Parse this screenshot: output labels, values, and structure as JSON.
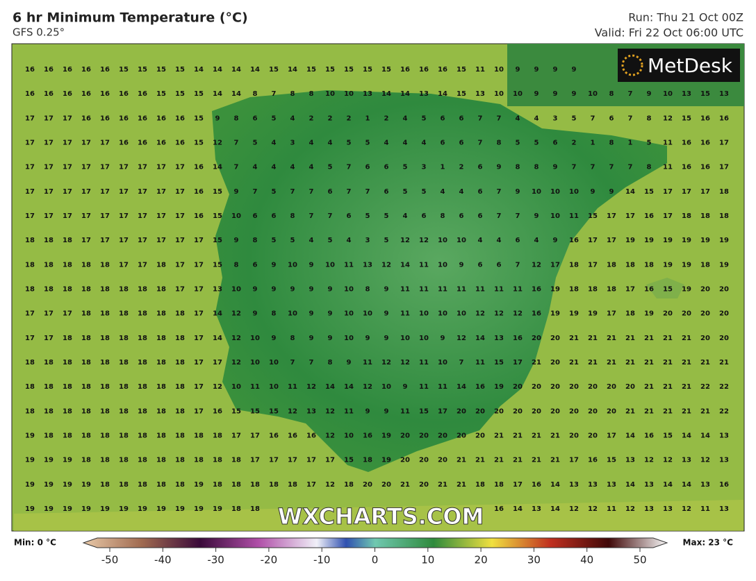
{
  "header": {
    "title": "6 hr Minimum Temperature (°C)",
    "model": "GFS 0.25°",
    "run": "Run: Thu 21 Oct 00Z",
    "valid": "Valid: Fri 22 Oct 06:00 UTC"
  },
  "logo": "MetDesk",
  "watermark": "WXCHARTS.COM",
  "grid": [
    [
      16,
      16,
      16,
      16,
      16,
      15,
      15,
      15,
      15,
      14,
      14,
      14,
      14,
      15,
      14,
      15,
      15,
      15,
      15,
      15,
      16,
      16,
      16,
      15,
      11,
      10,
      9,
      9,
      9,
      9,
      null,
      null,
      null,
      null,
      null,
      null,
      null,
      null
    ],
    [
      16,
      16,
      16,
      16,
      16,
      16,
      16,
      15,
      15,
      15,
      14,
      14,
      8,
      7,
      8,
      8,
      10,
      10,
      13,
      14,
      14,
      13,
      14,
      15,
      13,
      10,
      10,
      9,
      9,
      9,
      10,
      8,
      7,
      9,
      10,
      13,
      15,
      13
    ],
    [
      17,
      17,
      17,
      16,
      16,
      16,
      16,
      16,
      16,
      15,
      9,
      8,
      6,
      5,
      4,
      2,
      2,
      2,
      1,
      2,
      4,
      5,
      6,
      6,
      7,
      7,
      4,
      4,
      3,
      5,
      7,
      6,
      7,
      8,
      12,
      15,
      16,
      16
    ],
    [
      17,
      17,
      17,
      17,
      17,
      16,
      16,
      16,
      16,
      15,
      12,
      7,
      5,
      4,
      3,
      4,
      4,
      5,
      5,
      4,
      4,
      4,
      6,
      6,
      7,
      8,
      5,
      5,
      6,
      2,
      1,
      8,
      1,
      5,
      11,
      16,
      16,
      17
    ],
    [
      17,
      17,
      17,
      17,
      17,
      17,
      17,
      17,
      17,
      16,
      14,
      7,
      4,
      4,
      4,
      4,
      5,
      7,
      6,
      6,
      5,
      3,
      1,
      2,
      6,
      9,
      8,
      8,
      9,
      7,
      7,
      7,
      7,
      8,
      11,
      16,
      16,
      17
    ],
    [
      17,
      17,
      17,
      17,
      17,
      17,
      17,
      17,
      17,
      16,
      15,
      9,
      7,
      5,
      7,
      7,
      6,
      7,
      7,
      6,
      5,
      5,
      4,
      4,
      6,
      7,
      9,
      10,
      10,
      10,
      9,
      9,
      14,
      15,
      17,
      17,
      17,
      18
    ],
    [
      17,
      17,
      17,
      17,
      17,
      17,
      17,
      17,
      17,
      16,
      15,
      10,
      6,
      6,
      8,
      7,
      7,
      6,
      5,
      5,
      4,
      6,
      8,
      6,
      6,
      7,
      7,
      9,
      10,
      11,
      15,
      17,
      17,
      16,
      17,
      18,
      18,
      18
    ],
    [
      18,
      18,
      18,
      17,
      17,
      17,
      17,
      17,
      17,
      17,
      15,
      9,
      8,
      5,
      5,
      4,
      5,
      4,
      3,
      5,
      12,
      12,
      10,
      10,
      4,
      4,
      6,
      4,
      9,
      16,
      17,
      17,
      19,
      19,
      19,
      19,
      19,
      19
    ],
    [
      18,
      18,
      18,
      18,
      18,
      17,
      17,
      18,
      17,
      17,
      15,
      8,
      6,
      9,
      10,
      9,
      10,
      11,
      13,
      12,
      14,
      11,
      10,
      9,
      6,
      6,
      7,
      12,
      17,
      18,
      17,
      18,
      18,
      18,
      19,
      19,
      18,
      19
    ],
    [
      18,
      18,
      18,
      18,
      18,
      18,
      18,
      18,
      17,
      17,
      13,
      10,
      9,
      9,
      9,
      9,
      9,
      10,
      8,
      9,
      11,
      11,
      11,
      11,
      11,
      11,
      11,
      16,
      19,
      18,
      18,
      18,
      17,
      16,
      15,
      19,
      20,
      20
    ],
    [
      17,
      17,
      17,
      18,
      18,
      18,
      18,
      18,
      18,
      17,
      14,
      12,
      9,
      8,
      10,
      9,
      9,
      10,
      10,
      9,
      11,
      10,
      10,
      10,
      12,
      12,
      12,
      16,
      19,
      19,
      19,
      17,
      18,
      19,
      20,
      20,
      20,
      20
    ],
    [
      17,
      17,
      18,
      18,
      18,
      18,
      18,
      18,
      18,
      17,
      14,
      12,
      10,
      9,
      8,
      9,
      9,
      10,
      9,
      9,
      10,
      10,
      9,
      12,
      14,
      13,
      16,
      20,
      20,
      21,
      21,
      21,
      21,
      21,
      21,
      21,
      20,
      20
    ],
    [
      18,
      18,
      18,
      18,
      18,
      18,
      18,
      18,
      18,
      17,
      17,
      12,
      10,
      10,
      7,
      7,
      8,
      9,
      11,
      12,
      12,
      11,
      10,
      7,
      11,
      15,
      17,
      21,
      20,
      21,
      21,
      21,
      21,
      21,
      21,
      21,
      21,
      21
    ],
    [
      18,
      18,
      18,
      18,
      18,
      18,
      18,
      18,
      18,
      17,
      12,
      10,
      11,
      10,
      11,
      12,
      14,
      14,
      12,
      10,
      9,
      11,
      11,
      14,
      16,
      19,
      20,
      20,
      20,
      20,
      20,
      20,
      20,
      21,
      21,
      21,
      22,
      22
    ],
    [
      18,
      18,
      18,
      18,
      18,
      18,
      18,
      18,
      18,
      17,
      16,
      15,
      15,
      15,
      12,
      13,
      12,
      11,
      9,
      9,
      11,
      15,
      17,
      20,
      20,
      20,
      20,
      20,
      20,
      20,
      20,
      20,
      21,
      21,
      21,
      21,
      21,
      22
    ],
    [
      19,
      18,
      18,
      18,
      18,
      18,
      18,
      18,
      18,
      18,
      18,
      17,
      17,
      16,
      16,
      16,
      12,
      10,
      16,
      19,
      20,
      20,
      20,
      20,
      20,
      21,
      21,
      21,
      21,
      20,
      20,
      17,
      14,
      16,
      15,
      14,
      14,
      13
    ],
    [
      19,
      19,
      19,
      18,
      18,
      18,
      18,
      18,
      18,
      18,
      18,
      18,
      17,
      17,
      17,
      17,
      17,
      15,
      18,
      19,
      20,
      20,
      20,
      21,
      21,
      21,
      21,
      21,
      21,
      17,
      16,
      15,
      13,
      12,
      12,
      13,
      12,
      13
    ],
    [
      19,
      19,
      19,
      19,
      18,
      18,
      18,
      18,
      18,
      19,
      18,
      18,
      18,
      18,
      18,
      17,
      12,
      18,
      20,
      20,
      21,
      20,
      21,
      21,
      18,
      18,
      17,
      16,
      14,
      13,
      13,
      13,
      14,
      13,
      14,
      14,
      13,
      16
    ],
    [
      19,
      19,
      19,
      19,
      19,
      19,
      19,
      19,
      19,
      19,
      19,
      18,
      18,
      null,
      null,
      null,
      null,
      null,
      null,
      null,
      null,
      null,
      null,
      null,
      null,
      16,
      14,
      13,
      14,
      12,
      12,
      11,
      12,
      13,
      13,
      12,
      11,
      13
    ]
  ],
  "colorbar": {
    "min_label": "Min: 0 °C",
    "max_label": "Max: 23 °C",
    "ticks": [
      -50,
      -40,
      -30,
      -20,
      -10,
      0,
      10,
      20,
      30,
      40,
      50
    ]
  }
}
